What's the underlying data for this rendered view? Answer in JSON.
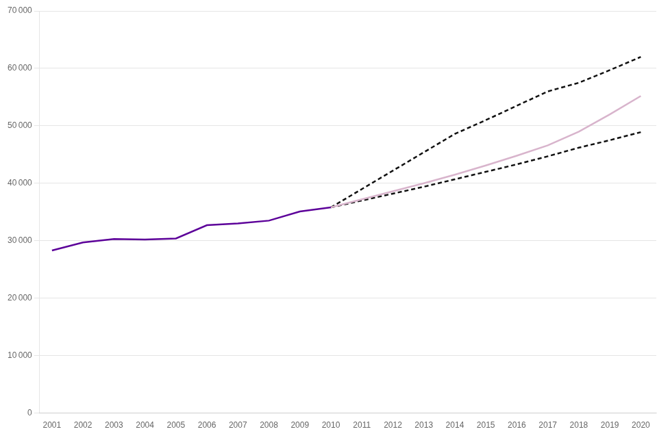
{
  "chart_data": {
    "type": "line",
    "series": [
      {
        "x": [
          2001,
          2002,
          2003,
          2004,
          2005,
          2006,
          2007,
          2008,
          2009,
          2010
        ],
        "values": [
          28300,
          29700,
          30300,
          30200,
          30400,
          32700,
          33000,
          33500,
          35100,
          35800
        ],
        "color": "#5c0099",
        "line_style": "solid"
      },
      {
        "x": [
          2010,
          2011,
          2012,
          2013,
          2014,
          2015,
          2016,
          2017,
          2018,
          2019,
          2020
        ],
        "values": [
          35800,
          37200,
          38600,
          40000,
          41500,
          43100,
          44800,
          46600,
          49000,
          52000,
          55200
        ],
        "color": "#d8b4cc",
        "line_style": "solid"
      },
      {
        "x": [
          2010,
          2011,
          2012,
          2013,
          2014,
          2015,
          2016,
          2017,
          2018,
          2019,
          2020
        ],
        "values": [
          35800,
          39000,
          42200,
          45400,
          48600,
          51000,
          53500,
          56000,
          57500,
          59700,
          62000
        ],
        "color": "#111111",
        "line_style": "dashed"
      },
      {
        "x": [
          2010,
          2011,
          2012,
          2013,
          2014,
          2015,
          2016,
          2017,
          2018,
          2019,
          2020
        ],
        "values": [
          35800,
          37000,
          38200,
          39400,
          40700,
          42000,
          43300,
          44700,
          46200,
          47500,
          48900
        ],
        "color": "#111111",
        "line_style": "dashed"
      }
    ],
    "xlim": [
      2000.6,
      2020.5
    ],
    "xticks": [
      2001,
      2002,
      2003,
      2004,
      2005,
      2006,
      2007,
      2008,
      2009,
      2010,
      2011,
      2012,
      2013,
      2014,
      2015,
      2016,
      2017,
      2018,
      2019,
      2020
    ],
    "ylim": [
      0,
      70000
    ],
    "yticks": [
      0,
      {
        "value": 10000,
        "label": "10 000"
      },
      {
        "value": 20000,
        "label": "20 000"
      },
      {
        "value": 30000,
        "label": "30 000"
      },
      {
        "value": 40000,
        "label": "40 000"
      },
      {
        "value": 50000,
        "label": "50 000"
      },
      {
        "value": 60000,
        "label": "60 000"
      },
      {
        "value": 70000,
        "label": "70 000"
      }
    ],
    "grid": "y"
  }
}
